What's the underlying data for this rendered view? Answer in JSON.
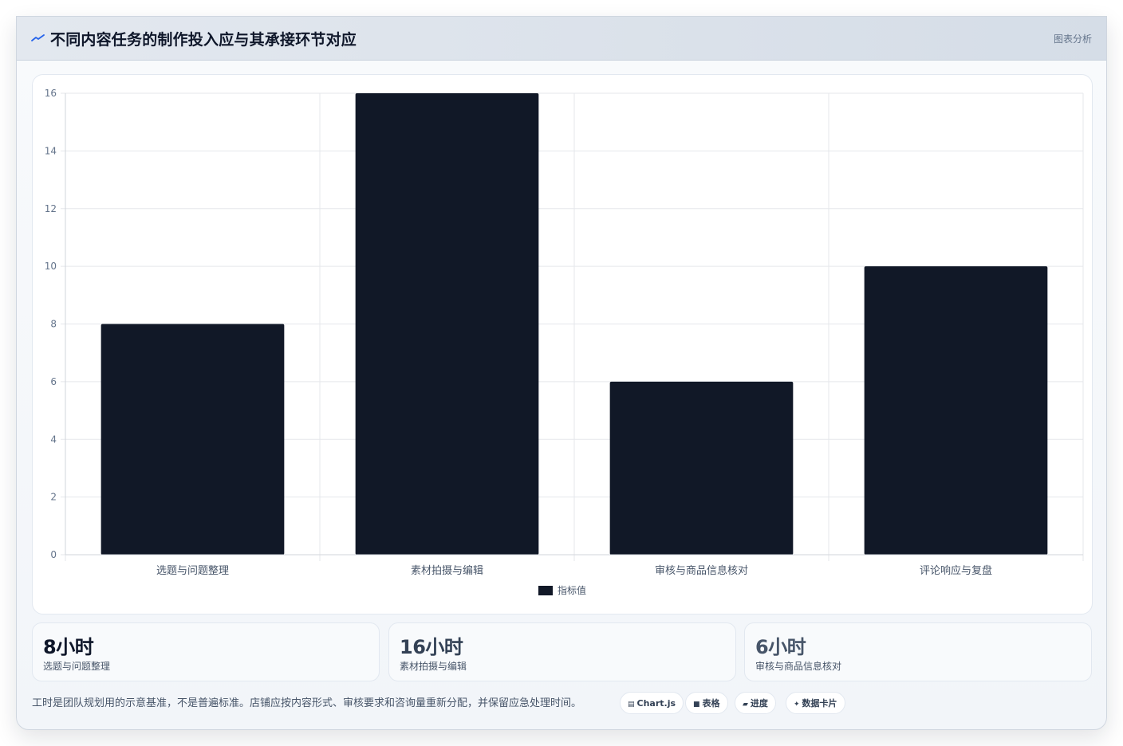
{
  "header": {
    "title": "不同内容任务的制作投入应与其承接环节对应",
    "tag": "图表分析",
    "icon": "trend-icon"
  },
  "chart_data": {
    "type": "bar",
    "categories": [
      "选题与问题整理",
      "素材拍摄与编辑",
      "审核与商品信息核对",
      "评论响应与复盘"
    ],
    "series": [
      {
        "name": "指标值",
        "values": [
          8,
          16,
          6,
          10
        ]
      }
    ],
    "ylim": [
      0,
      16
    ],
    "yticks": [
      0,
      2,
      4,
      6,
      8,
      10,
      12,
      14,
      16
    ],
    "grid": true,
    "legend": "bottom",
    "bar_color": "#111827"
  },
  "stats": [
    {
      "value": "8小时",
      "label": "选题与问题整理",
      "color": "#0f172a"
    },
    {
      "value": "16小时",
      "label": "素材拍摄与编辑",
      "color": "#334155"
    },
    {
      "value": "6小时",
      "label": "审核与商品信息核对",
      "color": "#475569"
    }
  ],
  "footnote": "工时是团队规划用的示意基准，不是普遍标准。店铺应按内容形式、审核要求和咨询量重新分配，并保留应急处理时间。",
  "pills": [
    {
      "icon": "chart-icon",
      "glyph": "▤",
      "label": "Chart.js"
    },
    {
      "icon": "table-icon",
      "glyph": "■",
      "label": "表格"
    },
    {
      "icon": "progress-icon",
      "glyph": "▰",
      "label": "进度"
    },
    {
      "icon": "card-icon",
      "glyph": "✦",
      "label": "数据卡片"
    }
  ]
}
